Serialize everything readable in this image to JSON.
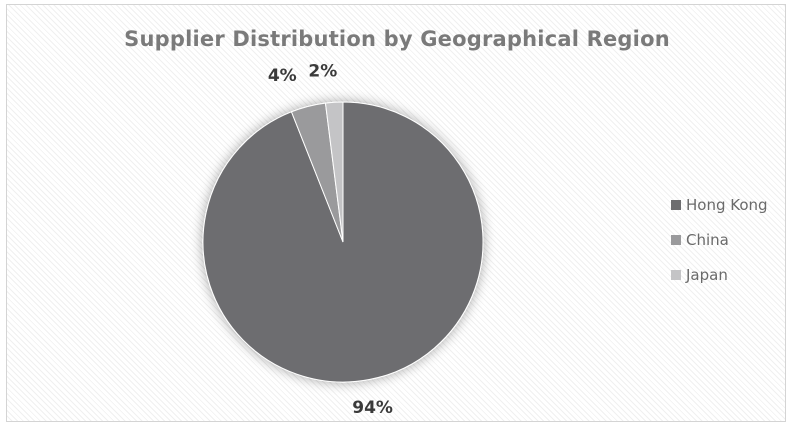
{
  "chart_data": {
    "type": "pie",
    "title": "Supplier Distribution by Geographical Region",
    "categories": [
      "Hong Kong",
      "China",
      "Japan"
    ],
    "values": [
      94,
      4,
      2
    ],
    "data_labels": [
      "94%",
      "4%",
      "2%"
    ],
    "colors": [
      "#6d6d6f",
      "#9a9a9c",
      "#c4c4c6"
    ],
    "legend_position": "right",
    "background": "diagonal-hatch"
  }
}
